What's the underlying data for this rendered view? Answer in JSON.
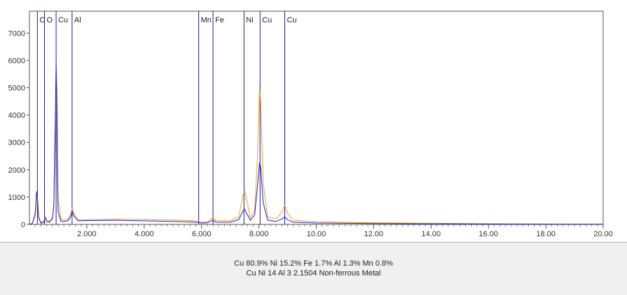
{
  "chart_data": {
    "type": "line",
    "xlim": [
      0.0,
      20.0
    ],
    "ylim": [
      0,
      7800
    ],
    "grid": false,
    "x_ticks": [
      2.0,
      4.0,
      6.0,
      8.0,
      10.0,
      12.0,
      14.0,
      16.0,
      18.0,
      20.0
    ],
    "x_tick_labels": [
      "2.000",
      "4.000",
      "6.000",
      "8.000",
      "10.00",
      "12.00",
      "14.00",
      "16.00",
      "18.00",
      "20.00"
    ],
    "y_ticks": [
      0,
      1000,
      2000,
      3000,
      4000,
      5000,
      6000,
      7000
    ],
    "y_tick_labels": [
      "0",
      "1000",
      "2000",
      "3000",
      "4000",
      "5000",
      "6000",
      "7000"
    ],
    "element_markers": [
      {
        "label": "C",
        "x": 0.277
      },
      {
        "label": "O",
        "x": 0.525
      },
      {
        "label": "Cu",
        "x": 0.93
      },
      {
        "label": "Al",
        "x": 1.487
      },
      {
        "label": "Mn",
        "x": 5.9
      },
      {
        "label": "Fe",
        "x": 6.4
      },
      {
        "label": "Ni",
        "x": 7.48
      },
      {
        "label": "Cu",
        "x": 8.04
      },
      {
        "label": "Cu",
        "x": 8.9
      }
    ],
    "series": [
      {
        "color": "#f0a030",
        "points": [
          [
            0.0,
            0
          ],
          [
            0.1,
            40
          ],
          [
            0.2,
            300
          ],
          [
            0.25,
            1000
          ],
          [
            0.28,
            900
          ],
          [
            0.32,
            300
          ],
          [
            0.4,
            80
          ],
          [
            0.5,
            120
          ],
          [
            0.55,
            300
          ],
          [
            0.6,
            150
          ],
          [
            0.7,
            120
          ],
          [
            0.8,
            250
          ],
          [
            0.85,
            600
          ],
          [
            0.9,
            2900
          ],
          [
            0.93,
            4900
          ],
          [
            0.96,
            5000
          ],
          [
            0.98,
            3000
          ],
          [
            1.0,
            900
          ],
          [
            1.1,
            180
          ],
          [
            1.2,
            160
          ],
          [
            1.35,
            200
          ],
          [
            1.45,
            420
          ],
          [
            1.49,
            600
          ],
          [
            1.55,
            400
          ],
          [
            1.7,
            180
          ],
          [
            2.0,
            170
          ],
          [
            3.0,
            200
          ],
          [
            4.0,
            190
          ],
          [
            5.0,
            160
          ],
          [
            5.6,
            140
          ],
          [
            5.9,
            110
          ],
          [
            6.0,
            70
          ],
          [
            6.2,
            90
          ],
          [
            6.4,
            250
          ],
          [
            6.5,
            140
          ],
          [
            7.0,
            130
          ],
          [
            7.3,
            300
          ],
          [
            7.45,
            1100
          ],
          [
            7.5,
            1250
          ],
          [
            7.55,
            1000
          ],
          [
            7.7,
            250
          ],
          [
            7.85,
            500
          ],
          [
            7.95,
            2500
          ],
          [
            8.02,
            5050
          ],
          [
            8.06,
            4500
          ],
          [
            8.15,
            1500
          ],
          [
            8.3,
            280
          ],
          [
            8.6,
            200
          ],
          [
            8.8,
            450
          ],
          [
            8.9,
            700
          ],
          [
            9.0,
            400
          ],
          [
            9.2,
            150
          ],
          [
            10.0,
            100
          ],
          [
            11.0,
            80
          ],
          [
            12.0,
            60
          ],
          [
            14.0,
            40
          ],
          [
            16.0,
            25
          ],
          [
            18.0,
            15
          ],
          [
            20.0,
            10
          ]
        ]
      },
      {
        "color": "#2020c0",
        "points": [
          [
            0.0,
            0
          ],
          [
            0.1,
            30
          ],
          [
            0.2,
            400
          ],
          [
            0.25,
            1200
          ],
          [
            0.28,
            950
          ],
          [
            0.32,
            250
          ],
          [
            0.4,
            40
          ],
          [
            0.5,
            80
          ],
          [
            0.55,
            250
          ],
          [
            0.6,
            100
          ],
          [
            0.7,
            90
          ],
          [
            0.8,
            200
          ],
          [
            0.85,
            700
          ],
          [
            0.9,
            3900
          ],
          [
            0.93,
            5900
          ],
          [
            0.96,
            4100
          ],
          [
            0.98,
            1500
          ],
          [
            1.0,
            450
          ],
          [
            1.1,
            120
          ],
          [
            1.2,
            100
          ],
          [
            1.35,
            140
          ],
          [
            1.45,
            300
          ],
          [
            1.49,
            480
          ],
          [
            1.55,
            300
          ],
          [
            1.7,
            130
          ],
          [
            2.0,
            140
          ],
          [
            3.0,
            150
          ],
          [
            4.0,
            130
          ],
          [
            5.0,
            110
          ],
          [
            5.6,
            90
          ],
          [
            5.9,
            70
          ],
          [
            6.0,
            50
          ],
          [
            6.2,
            60
          ],
          [
            6.4,
            150
          ],
          [
            6.5,
            80
          ],
          [
            7.0,
            80
          ],
          [
            7.3,
            180
          ],
          [
            7.45,
            500
          ],
          [
            7.5,
            560
          ],
          [
            7.55,
            450
          ],
          [
            7.7,
            150
          ],
          [
            7.85,
            350
          ],
          [
            7.95,
            1400
          ],
          [
            8.02,
            2250
          ],
          [
            8.06,
            2100
          ],
          [
            8.15,
            800
          ],
          [
            8.3,
            160
          ],
          [
            8.6,
            110
          ],
          [
            8.8,
            200
          ],
          [
            8.9,
            280
          ],
          [
            9.0,
            170
          ],
          [
            9.2,
            80
          ],
          [
            10.0,
            50
          ],
          [
            11.0,
            40
          ],
          [
            12.0,
            30
          ],
          [
            14.0,
            20
          ],
          [
            16.0,
            12
          ],
          [
            18.0,
            8
          ],
          [
            20.0,
            5
          ]
        ]
      }
    ]
  },
  "info": {
    "composition": "Cu 80.9%   Ni 15.2%   Fe 1.7%   Al 1.3%   Mn 0.8%",
    "sample": "Cu Ni 14 Al 3  2.1504  Non-ferrous Metal"
  }
}
